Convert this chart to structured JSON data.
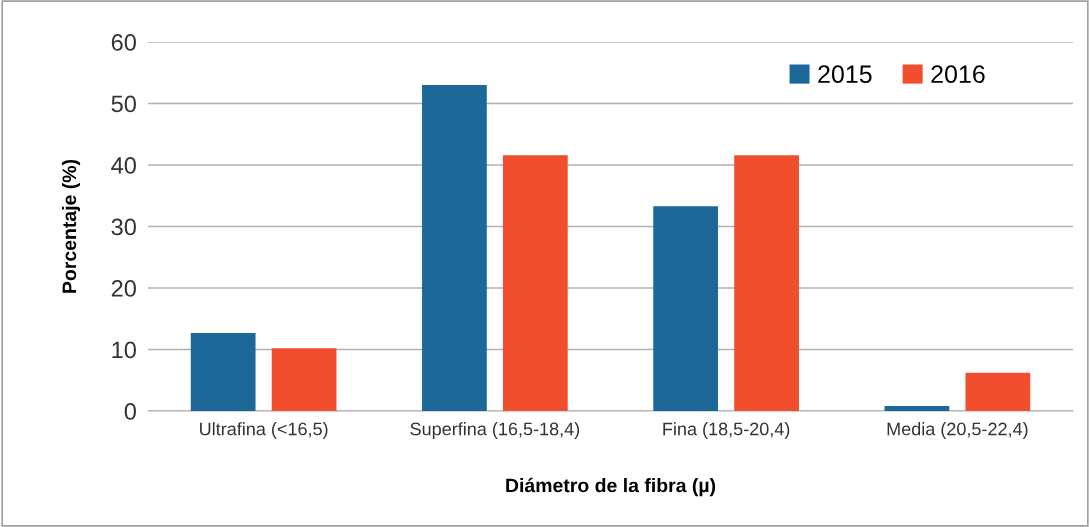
{
  "chart_data": {
    "type": "bar",
    "xlabel": "Diámetro de la fibra (µ)",
    "ylabel": "Porcentaje (%)",
    "categories": [
      "Ultrafina (<16,5)",
      "Superfina (16,5-18,4)",
      "Fina (18,5-20,4)",
      "Media (20,5-22,4)"
    ],
    "series": [
      {
        "name": "2015",
        "color": "#1b6899",
        "values": [
          12.7,
          53.0,
          33.3,
          0.8
        ]
      },
      {
        "name": "2016",
        "color": "#f04e2c",
        "values": [
          10.2,
          41.6,
          41.6,
          6.2
        ]
      }
    ],
    "ylim": [
      0,
      60
    ],
    "yticks": [
      0,
      10,
      20,
      30,
      40,
      50,
      60
    ],
    "grid": "y",
    "legend": "top right"
  }
}
